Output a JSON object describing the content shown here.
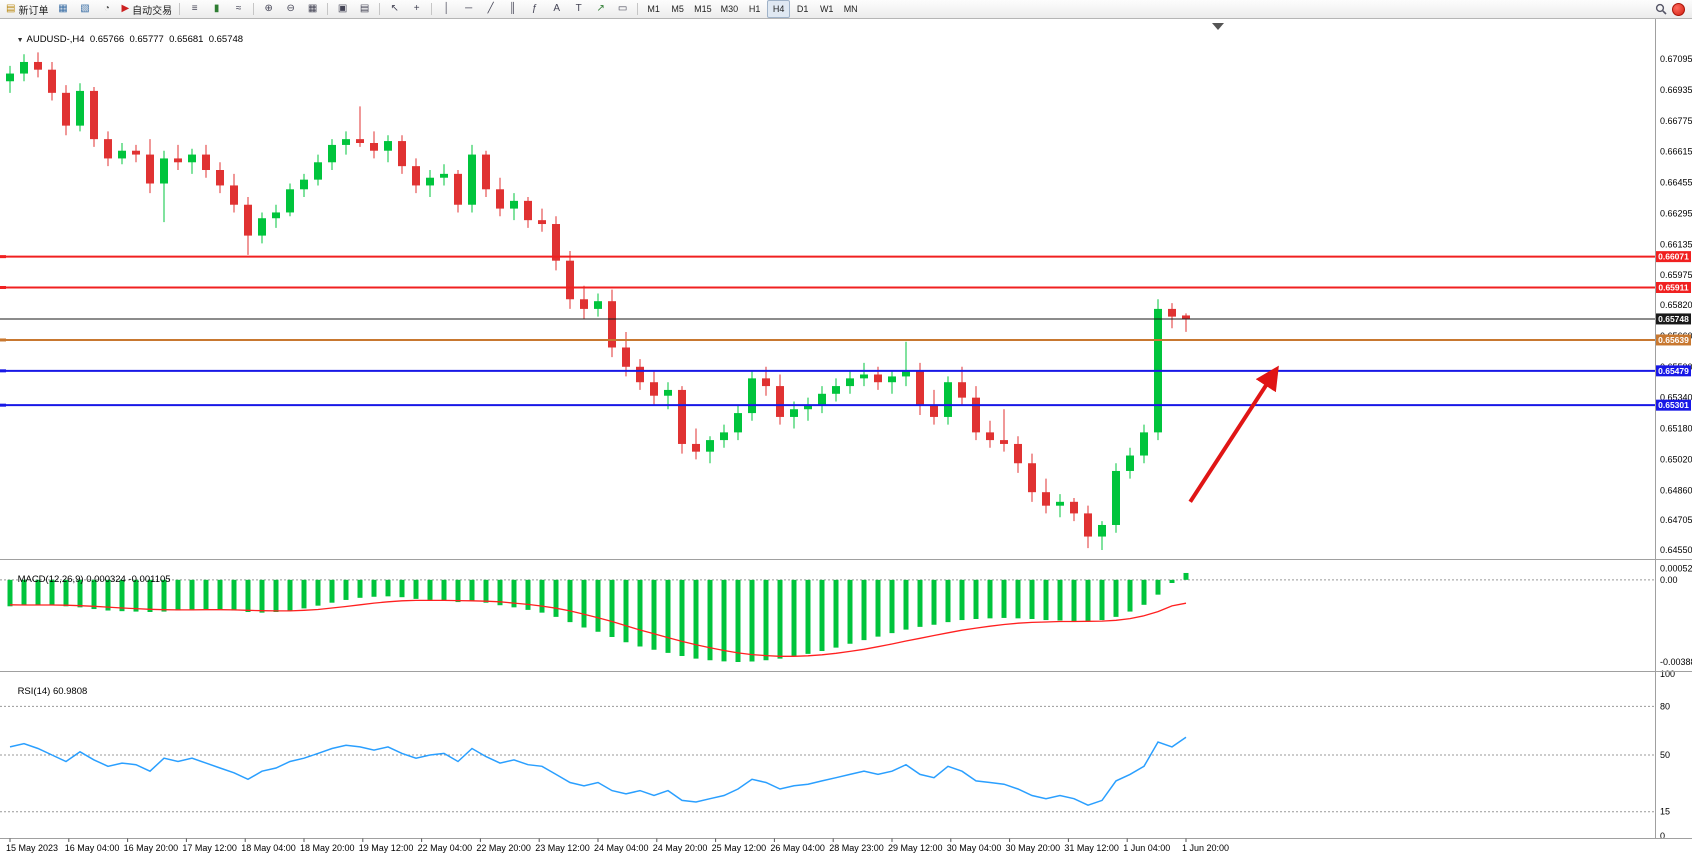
{
  "toolbar": {
    "groups": [
      {
        "name": "trade",
        "items": [
          {
            "name": "new-order-button",
            "glyph": "▤",
            "label": "新订单",
            "color": "#b8860b"
          },
          {
            "name": "charts-icon",
            "glyph": "▦",
            "color": "#3a6ea5"
          },
          {
            "name": "profile-icon",
            "glyph": "▧",
            "color": "#3a6ea5"
          },
          {
            "name": "alerts-icon",
            "glyph": "◔",
            "color": "#555555"
          },
          {
            "name": "auto-trading-button",
            "glyph": "▶",
            "label": "自动交易",
            "color": "#cc2020"
          }
        ]
      },
      {
        "name": "chart-type",
        "items": [
          {
            "name": "bars-icon",
            "glyph": "≡"
          },
          {
            "name": "candlesticks-icon",
            "glyph": "▮",
            "color": "#2e7d32"
          },
          {
            "name": "line-chart-icon",
            "glyph": "≈"
          }
        ]
      },
      {
        "name": "zoom",
        "items": [
          {
            "name": "zoom-in-icon",
            "glyph": "⊕"
          },
          {
            "name": "zoom-out-icon",
            "glyph": "⊖"
          },
          {
            "name": "grid-icon",
            "glyph": "▦"
          }
        ]
      },
      {
        "name": "windows",
        "items": [
          {
            "name": "new-chart-icon",
            "glyph": "▣"
          },
          {
            "name": "tile-windows-icon",
            "glyph": "▤"
          }
        ]
      },
      {
        "name": "cursor",
        "items": [
          {
            "name": "cursor-icon",
            "glyph": "↖"
          },
          {
            "name": "crosshair-icon",
            "glyph": "+"
          }
        ]
      },
      {
        "name": "draw",
        "items": [
          {
            "name": "vertical-line-icon",
            "glyph": "│"
          },
          {
            "name": "horizontal-line-icon",
            "glyph": "─"
          },
          {
            "name": "trendline-icon",
            "glyph": "╱"
          },
          {
            "name": "channel-icon",
            "glyph": "║"
          },
          {
            "name": "fibonacci-icon",
            "glyph": "ƒ"
          },
          {
            "name": "text-icon",
            "glyph": "A"
          },
          {
            "name": "label-icon",
            "glyph": "T"
          },
          {
            "name": "arrow-tool-icon",
            "glyph": "↗",
            "color": "#2e7d32"
          },
          {
            "name": "shapes-icon",
            "glyph": "▭"
          }
        ]
      }
    ],
    "timeframes": {
      "items": [
        "M1",
        "M5",
        "M15",
        "M30",
        "H1",
        "H4",
        "D1",
        "W1",
        "MN"
      ],
      "active": "H4"
    }
  },
  "colors": {
    "up": "#00c43c",
    "down": "#e03232",
    "macd_hist": "#00c43c",
    "macd_signal": "#ff2020",
    "rsi_line": "#2a9fff",
    "grid": "#999999",
    "splitter": "#a0a0a0",
    "axis_text": "#000000",
    "background": "#ffffff"
  },
  "chart_data": [
    {
      "type": "candlestick",
      "title": "AUDUSD-,H4",
      "ohlc_display": "0.65766  0.65777  0.65681  0.65748",
      "ylim": [
        0.64514,
        0.67282
      ],
      "y_ticks": [
        "0.67095",
        "0.66935",
        "0.66775",
        "0.66615",
        "0.66455",
        "0.66295",
        "0.66135",
        "0.65975",
        "0.65820",
        "0.65660",
        "0.65500",
        "0.65340",
        "0.65180",
        "0.65020",
        "0.64860",
        "0.64705",
        "0.64550"
      ],
      "x_labels": [
        "15 May 2023",
        "16 May 04:00",
        "16 May 20:00",
        "17 May 12:00",
        "18 May 04:00",
        "18 May 20:00",
        "19 May 12:00",
        "22 May 04:00",
        "22 May 20:00",
        "23 May 12:00",
        "24 May 04:00",
        "24 May 20:00",
        "25 May 12:00",
        "26 May 04:00",
        "28 May 23:00",
        "29 May 12:00",
        "30 May 04:00",
        "30 May 20:00",
        "31 May 12:00",
        "1 Jun 04:00",
        "1 Jun 20:00"
      ],
      "hlines": [
        {
          "price": 0.66071,
          "label": "0.66071",
          "color": "#f02020",
          "width": 2
        },
        {
          "price": 0.65911,
          "label": "0.65911",
          "color": "#f02020",
          "width": 2
        },
        {
          "price": 0.65748,
          "label": "0.65748",
          "color": "#1a1a1a",
          "width": 1,
          "role": "bid-price-line"
        },
        {
          "price": 0.65639,
          "label": "0.65639",
          "color": "#c87830",
          "width": 2
        },
        {
          "price": 0.65479,
          "label": "0.65479",
          "color": "#1818e6",
          "width": 2
        },
        {
          "price": 0.65301,
          "label": "0.65301",
          "color": "#1818e6",
          "width": 2
        }
      ],
      "annotation_arrow": {
        "from_index": 84.3,
        "from_price": 0.648,
        "to_index": 90.4,
        "to_price": 0.6548,
        "color": "#e01515"
      },
      "candles": [
        [
          0.6698,
          0.6706,
          0.6692,
          0.6702
        ],
        [
          0.6702,
          0.6712,
          0.6698,
          0.6708
        ],
        [
          0.6708,
          0.6713,
          0.67,
          0.6704
        ],
        [
          0.6704,
          0.6708,
          0.6688,
          0.6692
        ],
        [
          0.6692,
          0.6696,
          0.667,
          0.6675
        ],
        [
          0.6675,
          0.6697,
          0.6672,
          0.6693
        ],
        [
          0.6693,
          0.6695,
          0.6664,
          0.6668
        ],
        [
          0.6668,
          0.6672,
          0.6654,
          0.6658
        ],
        [
          0.6658,
          0.6666,
          0.6655,
          0.6662
        ],
        [
          0.6662,
          0.6665,
          0.6656,
          0.666
        ],
        [
          0.666,
          0.6668,
          0.664,
          0.6645
        ],
        [
          0.6645,
          0.6662,
          0.6625,
          0.6658
        ],
        [
          0.6658,
          0.6665,
          0.6652,
          0.6656
        ],
        [
          0.6656,
          0.6663,
          0.665,
          0.666
        ],
        [
          0.666,
          0.6665,
          0.6648,
          0.6652
        ],
        [
          0.6652,
          0.6656,
          0.664,
          0.6644
        ],
        [
          0.6644,
          0.665,
          0.663,
          0.6634
        ],
        [
          0.6634,
          0.6638,
          0.6608,
          0.6618
        ],
        [
          0.6618,
          0.663,
          0.6614,
          0.6627
        ],
        [
          0.6627,
          0.6634,
          0.6622,
          0.663
        ],
        [
          0.663,
          0.6645,
          0.6628,
          0.6642
        ],
        [
          0.6642,
          0.665,
          0.6638,
          0.6647
        ],
        [
          0.6647,
          0.666,
          0.6644,
          0.6656
        ],
        [
          0.6656,
          0.6668,
          0.6652,
          0.6665
        ],
        [
          0.6665,
          0.6672,
          0.666,
          0.6668
        ],
        [
          0.6668,
          0.6685,
          0.6664,
          0.6666
        ],
        [
          0.6666,
          0.6672,
          0.6658,
          0.6662
        ],
        [
          0.6662,
          0.667,
          0.6656,
          0.6667
        ],
        [
          0.6667,
          0.667,
          0.665,
          0.6654
        ],
        [
          0.6654,
          0.6658,
          0.664,
          0.6644
        ],
        [
          0.6644,
          0.6652,
          0.6638,
          0.6648
        ],
        [
          0.6648,
          0.6655,
          0.6644,
          0.665
        ],
        [
          0.665,
          0.6652,
          0.663,
          0.6634
        ],
        [
          0.6634,
          0.6665,
          0.663,
          0.666
        ],
        [
          0.666,
          0.6662,
          0.6638,
          0.6642
        ],
        [
          0.6642,
          0.6648,
          0.6628,
          0.6632
        ],
        [
          0.6632,
          0.664,
          0.6626,
          0.6636
        ],
        [
          0.6636,
          0.6638,
          0.6622,
          0.6626
        ],
        [
          0.6626,
          0.6632,
          0.662,
          0.6624
        ],
        [
          0.6624,
          0.6628,
          0.66,
          0.6605
        ],
        [
          0.6605,
          0.661,
          0.658,
          0.6585
        ],
        [
          0.6585,
          0.6592,
          0.6575,
          0.658
        ],
        [
          0.658,
          0.6588,
          0.6576,
          0.6584
        ],
        [
          0.6584,
          0.659,
          0.6555,
          0.656
        ],
        [
          0.656,
          0.6568,
          0.6545,
          0.655
        ],
        [
          0.655,
          0.6554,
          0.6538,
          0.6542
        ],
        [
          0.6542,
          0.6548,
          0.653,
          0.6535
        ],
        [
          0.6535,
          0.6542,
          0.6528,
          0.6538
        ],
        [
          0.6538,
          0.654,
          0.6505,
          0.651
        ],
        [
          0.651,
          0.6518,
          0.6502,
          0.6506
        ],
        [
          0.6506,
          0.6514,
          0.65,
          0.6512
        ],
        [
          0.6512,
          0.652,
          0.6508,
          0.6516
        ],
        [
          0.6516,
          0.653,
          0.6512,
          0.6526
        ],
        [
          0.6526,
          0.6548,
          0.6522,
          0.6544
        ],
        [
          0.6544,
          0.655,
          0.6535,
          0.654
        ],
        [
          0.654,
          0.6546,
          0.652,
          0.6524
        ],
        [
          0.6524,
          0.6532,
          0.6518,
          0.6528
        ],
        [
          0.6528,
          0.6534,
          0.6522,
          0.653
        ],
        [
          0.653,
          0.654,
          0.6526,
          0.6536
        ],
        [
          0.6536,
          0.6544,
          0.6532,
          0.654
        ],
        [
          0.654,
          0.6548,
          0.6536,
          0.6544
        ],
        [
          0.6544,
          0.6552,
          0.654,
          0.6546
        ],
        [
          0.6546,
          0.655,
          0.6538,
          0.6542
        ],
        [
          0.6542,
          0.6548,
          0.6536,
          0.6545
        ],
        [
          0.6545,
          0.6563,
          0.654,
          0.6548
        ],
        [
          0.6548,
          0.6552,
          0.6525,
          0.653
        ],
        [
          0.653,
          0.6538,
          0.652,
          0.6524
        ],
        [
          0.6524,
          0.6545,
          0.652,
          0.6542
        ],
        [
          0.6542,
          0.655,
          0.653,
          0.6534
        ],
        [
          0.6534,
          0.654,
          0.6512,
          0.6516
        ],
        [
          0.6516,
          0.6522,
          0.6508,
          0.6512
        ],
        [
          0.6512,
          0.6528,
          0.6506,
          0.651
        ],
        [
          0.651,
          0.6514,
          0.6495,
          0.65
        ],
        [
          0.65,
          0.6505,
          0.648,
          0.6485
        ],
        [
          0.6485,
          0.6492,
          0.6474,
          0.6478
        ],
        [
          0.6478,
          0.6484,
          0.6472,
          0.648
        ],
        [
          0.648,
          0.6482,
          0.647,
          0.6474
        ],
        [
          0.6474,
          0.6478,
          0.6456,
          0.6462
        ],
        [
          0.6462,
          0.647,
          0.6455,
          0.6468
        ],
        [
          0.6468,
          0.65,
          0.6464,
          0.6496
        ],
        [
          0.6496,
          0.6508,
          0.6492,
          0.6504
        ],
        [
          0.6504,
          0.652,
          0.65,
          0.6516
        ],
        [
          0.6516,
          0.6585,
          0.6512,
          0.658
        ],
        [
          0.658,
          0.6583,
          0.657,
          0.6576
        ],
        [
          0.65766,
          0.65777,
          0.65681,
          0.65748
        ]
      ]
    },
    {
      "type": "macd",
      "name": "MACD(12,26,9)",
      "values_display": "0.000324 -0.001105",
      "ylim": [
        -0.004212,
        0.000842
      ],
      "y_ticks": [
        "0.000524",
        "0.00",
        "-0.003886"
      ],
      "histogram": [
        -0.00125,
        -0.0012,
        -0.00118,
        -0.0012,
        -0.00125,
        -0.0013,
        -0.00138,
        -0.00145,
        -0.00148,
        -0.0015,
        -0.00152,
        -0.0015,
        -0.00145,
        -0.0014,
        -0.00138,
        -0.0014,
        -0.00145,
        -0.00152,
        -0.00155,
        -0.00152,
        -0.00145,
        -0.00135,
        -0.00122,
        -0.00108,
        -0.00095,
        -0.00085,
        -0.0008,
        -0.00078,
        -0.00082,
        -0.0009,
        -0.00095,
        -0.00098,
        -0.00105,
        -0.001,
        -0.00108,
        -0.0012,
        -0.0013,
        -0.00142,
        -0.00155,
        -0.00175,
        -0.002,
        -0.00225,
        -0.00245,
        -0.0027,
        -0.00295,
        -0.00315,
        -0.0033,
        -0.00345,
        -0.0036,
        -0.00372,
        -0.0038,
        -0.00385,
        -0.00388,
        -0.00386,
        -0.0038,
        -0.00372,
        -0.00362,
        -0.0035,
        -0.00336,
        -0.0032,
        -0.00302,
        -0.00285,
        -0.00268,
        -0.00252,
        -0.00235,
        -0.00222,
        -0.00212,
        -0.002,
        -0.0019,
        -0.00185,
        -0.00182,
        -0.0018,
        -0.00182,
        -0.00185,
        -0.0019,
        -0.00192,
        -0.00195,
        -0.00195,
        -0.0019,
        -0.00175,
        -0.0015,
        -0.00118,
        -0.0007,
        -0.00015,
        0.000324
      ],
      "signal": [
        -0.00118,
        -0.00119,
        -0.00119,
        -0.00119,
        -0.0012,
        -0.00122,
        -0.00125,
        -0.00129,
        -0.00133,
        -0.00136,
        -0.00139,
        -0.00141,
        -0.00142,
        -0.00142,
        -0.00141,
        -0.00141,
        -0.00142,
        -0.00144,
        -0.00146,
        -0.00147,
        -0.00147,
        -0.00144,
        -0.0014,
        -0.00133,
        -0.00126,
        -0.00118,
        -0.0011,
        -0.00104,
        -0.00099,
        -0.00097,
        -0.00097,
        -0.00097,
        -0.00098,
        -0.00099,
        -0.00101,
        -0.00104,
        -0.0011,
        -0.00116,
        -0.00124,
        -0.00134,
        -0.00147,
        -0.00163,
        -0.00179,
        -0.00197,
        -0.00217,
        -0.00237,
        -0.00255,
        -0.00273,
        -0.00291,
        -0.00307,
        -0.00321,
        -0.00334,
        -0.00345,
        -0.00353,
        -0.00358,
        -0.00361,
        -0.00361,
        -0.00359,
        -0.00354,
        -0.00347,
        -0.00338,
        -0.00328,
        -0.00316,
        -0.00303,
        -0.00289,
        -0.00276,
        -0.00263,
        -0.0025,
        -0.00238,
        -0.00228,
        -0.00219,
        -0.00211,
        -0.00205,
        -0.00201,
        -0.00199,
        -0.00197,
        -0.00197,
        -0.00196,
        -0.00195,
        -0.00191,
        -0.00183,
        -0.0017,
        -0.0015,
        -0.00123,
        -0.001105
      ]
    },
    {
      "type": "rsi",
      "name": "RSI(14)",
      "value_display": "60.9808",
      "ylim": [
        0,
        100
      ],
      "levels": [
        80,
        50,
        15
      ],
      "y_ticks": [
        "100",
        "80",
        "50",
        "15",
        "0"
      ],
      "values": [
        55,
        57,
        54,
        50,
        46,
        52,
        47,
        43,
        45,
        44,
        40,
        48,
        46,
        48,
        45,
        42,
        39,
        35,
        40,
        42,
        46,
        48,
        51,
        54,
        56,
        55,
        53,
        55,
        51,
        48,
        50,
        51,
        46,
        54,
        49,
        45,
        47,
        44,
        43,
        38,
        33,
        31,
        33,
        28,
        26,
        28,
        25,
        28,
        22,
        21,
        23,
        25,
        29,
        35,
        33,
        29,
        31,
        32,
        34,
        36,
        38,
        40,
        38,
        40,
        44,
        38,
        36,
        43,
        40,
        34,
        33,
        32,
        29,
        25,
        23,
        25,
        23,
        19,
        22,
        34,
        38,
        43,
        58,
        55,
        60.98
      ]
    }
  ]
}
